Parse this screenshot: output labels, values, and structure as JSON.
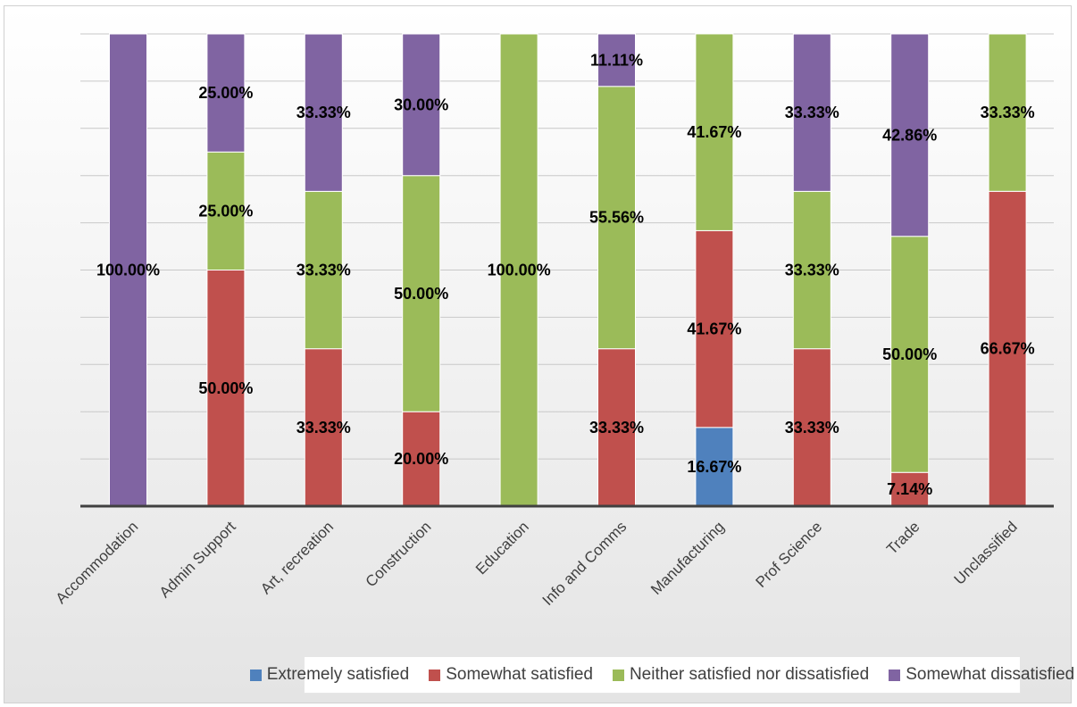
{
  "chart_data": {
    "type": "bar",
    "stacked": true,
    "normalized": "100%",
    "title": "",
    "xlabel": "",
    "ylabel": "",
    "ylim": [
      0,
      100
    ],
    "grid": true,
    "legend_position": "bottom",
    "categories": [
      "Accommodation",
      "Admin Support",
      "Art, recreation",
      "Construction",
      "Education",
      "Info and Comms",
      "Manufacturing",
      "Prof Science",
      "Trade",
      "Unclassified"
    ],
    "series": [
      {
        "name": "Extremely satisfied",
        "color": "#4f81bd",
        "values": [
          0,
          0,
          0,
          0,
          0,
          0,
          16.67,
          0,
          0,
          0
        ],
        "labels": [
          "",
          "",
          "",
          "",
          "",
          "",
          "16.67%",
          "",
          "",
          ""
        ]
      },
      {
        "name": "Somewhat satisfied",
        "color": "#c0504d",
        "values": [
          0,
          50.0,
          33.33,
          20.0,
          0,
          33.33,
          41.67,
          33.33,
          7.14,
          66.67
        ],
        "labels": [
          "",
          "50.00%",
          "33.33%",
          "20.00%",
          "",
          "33.33%",
          "41.67%",
          "33.33%",
          "7.14%",
          "66.67%"
        ]
      },
      {
        "name": "Neither satisfied nor dissatisfied",
        "color": "#9bbb59",
        "values": [
          0,
          25.0,
          33.33,
          50.0,
          100.0,
          55.56,
          41.67,
          33.33,
          50.0,
          33.33
        ],
        "labels": [
          "",
          "25.00%",
          "33.33%",
          "50.00%",
          "100.00%",
          "55.56%",
          "41.67%",
          "33.33%",
          "50.00%",
          "33.33%"
        ]
      },
      {
        "name": "Somewhat dissatisfied",
        "color": "#8064a2",
        "values": [
          100.0,
          25.0,
          33.33,
          30.0,
          0,
          11.11,
          0,
          33.33,
          42.86,
          0
        ],
        "labels": [
          "100.00%",
          "25.00%",
          "33.33%",
          "30.00%",
          "",
          "11.11%",
          "",
          "33.33%",
          "42.86%",
          ""
        ]
      }
    ]
  }
}
